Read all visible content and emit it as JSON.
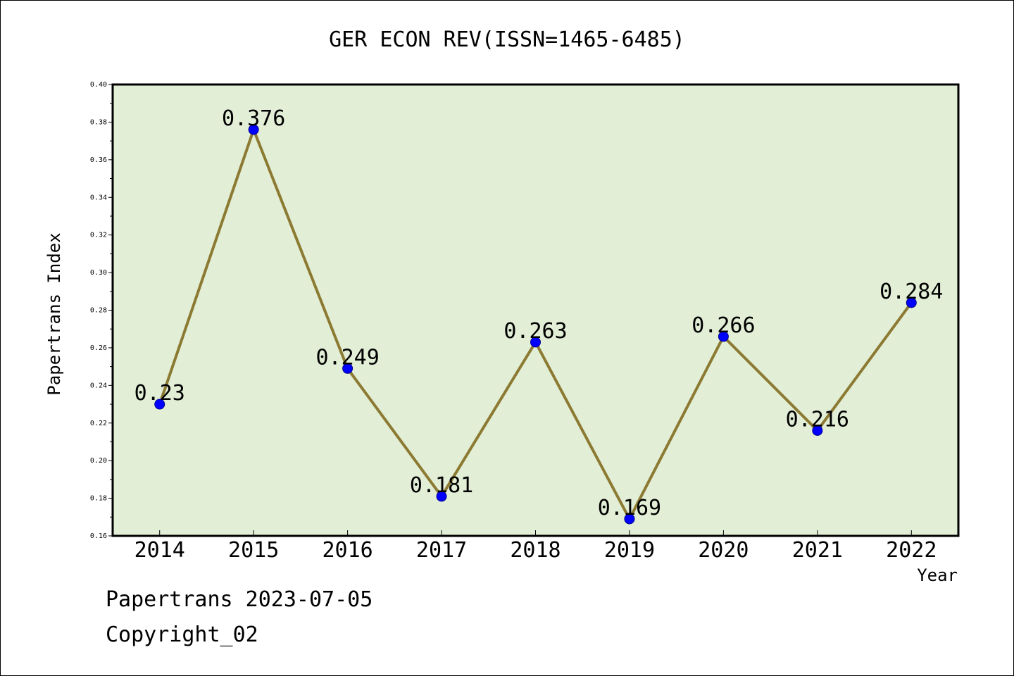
{
  "chart_data": {
    "type": "line",
    "title": "GER ECON REV(ISSN=1465-6485)",
    "xlabel": "Year",
    "ylabel": "Papertrans Index",
    "ylim": [
      0.16,
      0.4
    ],
    "yticks": [
      "0.16",
      "0.18",
      "0.20",
      "0.22",
      "0.24",
      "0.26",
      "0.28",
      "0.30",
      "0.32",
      "0.34",
      "0.36",
      "0.38",
      "0.40"
    ],
    "categories": [
      "2014",
      "2015",
      "2016",
      "2017",
      "2018",
      "2019",
      "2020",
      "2021",
      "2022"
    ],
    "values": [
      0.23,
      0.376,
      0.249,
      0.181,
      0.263,
      0.169,
      0.266,
      0.216,
      0.284
    ],
    "data_labels": [
      "0.23",
      "0.376",
      "0.249",
      "0.181",
      "0.263",
      "0.169",
      "0.266",
      "0.216",
      "0.284"
    ],
    "grid": false,
    "colors": {
      "plot_background": "#e2efd6",
      "line": "#8c7a33",
      "marker": "#0000ff",
      "marker_edge": "#00008b"
    }
  },
  "footer": {
    "line1": "Papertrans 2023-07-05",
    "line2": "Copyright_02"
  }
}
